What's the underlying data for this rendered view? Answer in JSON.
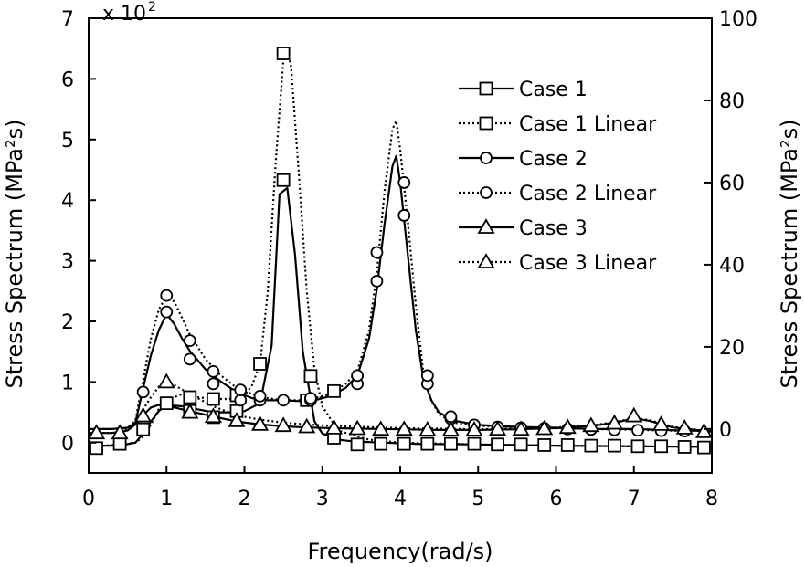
{
  "chart_data": {
    "type": "line",
    "xlabel": "Frequency(rad/s)",
    "ylabel_left": "Stress Spectrum (MPa²s)",
    "ylabel_right": "Stress Spectrum (MPa²s)",
    "left_multiplier": "x 10",
    "left_multiplier_exp": "2",
    "xlim": [
      0,
      8
    ],
    "ylim_left": [
      -0.5,
      7
    ],
    "ylim_right": [
      -10.7,
      100
    ],
    "x_ticks": [
      0,
      1,
      2,
      3,
      4,
      5,
      6,
      7,
      8
    ],
    "y_left_ticks": [
      0,
      1,
      2,
      3,
      4,
      5,
      6,
      7
    ],
    "y_right_ticks": [
      0,
      20,
      40,
      60,
      80,
      100
    ],
    "series": [
      {
        "name": "Case 1",
        "axis": "left",
        "style": "solid",
        "marker": "square",
        "x": [
          0.0,
          0.2,
          0.4,
          0.6,
          0.7,
          0.8,
          0.9,
          1.0,
          1.2,
          1.4,
          1.6,
          1.8,
          2.0,
          2.2,
          2.35,
          2.45,
          2.55,
          2.65,
          2.75,
          2.9,
          3.0,
          3.2,
          3.4,
          3.8,
          4.2,
          5.0,
          6.0,
          7.0,
          8.0
        ],
        "y": [
          -0.05,
          -0.05,
          -0.05,
          0.0,
          0.15,
          0.35,
          0.52,
          0.62,
          0.6,
          0.55,
          0.5,
          0.5,
          0.52,
          0.65,
          1.6,
          4.1,
          4.2,
          3.1,
          1.5,
          0.35,
          0.15,
          0.05,
          0.02,
          0.0,
          -0.02,
          -0.03,
          -0.05,
          -0.06,
          -0.07
        ],
        "marker_x": [
          0.1,
          0.4,
          0.7,
          1.0,
          1.3,
          1.6,
          1.9,
          2.5,
          2.8,
          3.15,
          3.45,
          3.75,
          4.05,
          4.35,
          4.65,
          4.95,
          5.25,
          5.55,
          5.85,
          6.15,
          6.45,
          6.75,
          7.05,
          7.35,
          7.65,
          7.9
        ],
        "marker_y": [
          -0.09,
          -0.02,
          0.22,
          0.65,
          0.52,
          0.42,
          0.52,
          4.33,
          0.7,
          0.08,
          -0.03,
          -0.02,
          -0.02,
          -0.02,
          -0.02,
          -0.02,
          -0.03,
          -0.03,
          -0.04,
          -0.04,
          -0.05,
          -0.05,
          -0.06,
          -0.06,
          -0.07,
          -0.08
        ]
      },
      {
        "name": "Case 1 Linear",
        "axis": "left",
        "style": "dotted",
        "marker": "square",
        "x": [
          0.0,
          0.2,
          0.4,
          0.6,
          0.7,
          0.8,
          0.9,
          1.0,
          1.2,
          1.4,
          1.6,
          1.8,
          2.0,
          2.1,
          2.2,
          2.3,
          2.4,
          2.5,
          2.55,
          2.6,
          2.7,
          2.8,
          2.9,
          3.0,
          3.2,
          3.6,
          4.0,
          5.0,
          6.0,
          7.0,
          8.0
        ],
        "y": [
          -0.05,
          -0.05,
          -0.03,
          0.0,
          0.1,
          0.3,
          0.55,
          0.7,
          0.8,
          0.75,
          0.72,
          0.72,
          0.78,
          0.95,
          1.3,
          2.5,
          4.6,
          6.3,
          6.45,
          6.2,
          4.4,
          2.5,
          1.2,
          0.6,
          0.2,
          0.05,
          0.0,
          -0.03,
          -0.05,
          -0.06,
          -0.07
        ],
        "marker_x": [
          2.5,
          2.2,
          2.85,
          1.3,
          1.6,
          1.9,
          3.15
        ],
        "marker_y": [
          6.42,
          1.3,
          1.1,
          0.75,
          0.72,
          0.78,
          0.85
        ]
      },
      {
        "name": "Case 2",
        "axis": "right",
        "style": "solid",
        "marker": "circle",
        "x": [
          0.0,
          0.3,
          0.5,
          0.6,
          0.7,
          0.8,
          0.9,
          1.0,
          1.1,
          1.2,
          1.3,
          1.5,
          1.7,
          1.9,
          2.1,
          2.3,
          2.5,
          2.7,
          2.9,
          3.1,
          3.3,
          3.45,
          3.6,
          3.7,
          3.8,
          3.9,
          3.95,
          4.0,
          4.1,
          4.2,
          4.3,
          4.4,
          4.5,
          4.7,
          5.0,
          5.5,
          6.0,
          6.5,
          7.0,
          7.5,
          8.0
        ],
        "y": [
          0.0,
          0.0,
          0.3,
          1.5,
          10.0,
          18.0,
          24.0,
          28.0,
          25.5,
          22.0,
          19.0,
          14.5,
          11.5,
          9.0,
          7.5,
          7.0,
          7.0,
          6.8,
          7.0,
          8.0,
          10.0,
          13.0,
          22.0,
          34.0,
          50.0,
          64.0,
          66.5,
          60.0,
          42.0,
          24.0,
          12.0,
          7.0,
          4.0,
          2.0,
          1.0,
          0.5,
          0.3,
          0.0,
          0.0,
          -0.3,
          -0.5
        ],
        "marker_x": [
          0.7,
          1.0,
          1.3,
          1.6,
          1.95,
          2.2,
          2.5,
          2.85,
          3.45,
          3.7,
          4.05,
          4.35,
          4.65,
          4.95,
          5.25,
          5.55,
          5.85,
          6.15,
          6.45,
          6.75,
          7.05,
          7.35,
          7.65
        ],
        "marker_y": [
          9.0,
          28.5,
          17.0,
          11.0,
          7.0,
          7.0,
          7.0,
          7.0,
          11.0,
          36.0,
          52.0,
          11.0,
          2.5,
          1.0,
          0.5,
          0.3,
          0.2,
          0.0,
          -0.1,
          -0.2,
          -0.3,
          -0.4,
          -0.5
        ]
      },
      {
        "name": "Case 2 Linear",
        "axis": "right",
        "style": "dotted",
        "marker": "circle",
        "x": [
          0.0,
          0.3,
          0.5,
          0.6,
          0.7,
          0.8,
          0.9,
          1.0,
          1.1,
          1.2,
          1.3,
          1.5,
          1.7,
          1.9,
          2.1,
          2.3,
          2.5,
          2.7,
          2.9,
          3.1,
          3.3,
          3.45,
          3.6,
          3.7,
          3.8,
          3.9,
          3.95,
          4.0,
          4.1,
          4.2,
          4.3,
          4.4,
          4.5,
          4.7,
          5.0,
          5.5,
          6.0,
          6.5,
          7.0,
          7.5,
          8.0
        ],
        "y": [
          0.0,
          0.0,
          0.3,
          2.0,
          12.0,
          22.0,
          29.0,
          32.5,
          31.0,
          27.0,
          23.0,
          17.0,
          13.0,
          10.0,
          8.5,
          7.5,
          7.0,
          7.0,
          7.5,
          8.5,
          11.0,
          14.0,
          24.0,
          38.0,
          58.0,
          73.0,
          75.0,
          68.0,
          50.0,
          30.0,
          13.0,
          7.0,
          3.5,
          1.5,
          0.8,
          0.4,
          0.2,
          0.0,
          -0.2,
          -0.4,
          -0.5
        ],
        "marker_x": [
          1.0,
          1.3,
          1.6,
          1.95,
          2.2,
          2.85,
          3.45,
          3.7,
          4.05,
          4.35,
          4.65
        ],
        "marker_y": [
          32.5,
          21.5,
          14.0,
          9.5,
          8.0,
          7.5,
          13.0,
          43.0,
          60.0,
          13.0,
          3.0
        ]
      },
      {
        "name": "Case 3",
        "axis": "left",
        "style": "solid",
        "marker": "triangle",
        "x": [
          0.0,
          0.3,
          0.5,
          0.6,
          0.7,
          0.8,
          0.9,
          1.0,
          1.1,
          1.3,
          1.6,
          1.9,
          2.2,
          2.5,
          2.8,
          3.1,
          3.5,
          4.0,
          4.5,
          5.0,
          5.5,
          6.0,
          6.5,
          6.8,
          7.0,
          7.2,
          7.5,
          8.0
        ],
        "y": [
          0.16,
          0.16,
          0.2,
          0.3,
          0.45,
          0.58,
          0.62,
          0.6,
          0.58,
          0.52,
          0.43,
          0.35,
          0.3,
          0.27,
          0.25,
          0.24,
          0.23,
          0.22,
          0.21,
          0.21,
          0.22,
          0.24,
          0.28,
          0.34,
          0.4,
          0.36,
          0.25,
          0.18
        ],
        "marker_x": [
          0.1,
          0.4,
          0.7,
          1.0,
          1.3,
          1.6,
          1.9,
          2.2,
          2.5,
          2.8,
          3.15,
          3.45,
          3.75,
          4.05,
          4.35,
          4.65,
          4.95,
          5.25,
          5.55,
          5.85,
          6.15,
          6.45,
          6.75,
          7.0,
          7.35,
          7.65,
          7.9
        ],
        "marker_y": [
          0.16,
          0.16,
          0.44,
          1.0,
          0.5,
          0.43,
          0.36,
          0.3,
          0.28,
          0.26,
          0.24,
          0.23,
          0.22,
          0.22,
          0.21,
          0.21,
          0.21,
          0.22,
          0.22,
          0.23,
          0.25,
          0.28,
          0.32,
          0.44,
          0.3,
          0.24,
          0.18
        ]
      },
      {
        "name": "Case 3 Linear",
        "axis": "left",
        "style": "dotted",
        "marker": "triangle",
        "x": [
          0.0,
          0.3,
          0.5,
          0.6,
          0.7,
          0.8,
          0.9,
          1.0,
          1.1,
          1.3,
          1.6,
          1.9,
          2.2,
          2.5,
          2.8,
          3.1,
          3.5,
          4.0,
          4.5,
          5.0,
          5.5,
          6.0,
          6.5,
          6.8,
          7.0,
          7.2,
          7.5,
          8.0
        ],
        "y": [
          0.16,
          0.16,
          0.22,
          0.35,
          0.55,
          0.75,
          0.92,
          1.0,
          0.95,
          0.8,
          0.6,
          0.45,
          0.38,
          0.33,
          0.3,
          0.28,
          0.26,
          0.24,
          0.23,
          0.22,
          0.23,
          0.25,
          0.29,
          0.35,
          0.41,
          0.37,
          0.26,
          0.18
        ],
        "marker_x": [],
        "marker_y": []
      }
    ]
  }
}
